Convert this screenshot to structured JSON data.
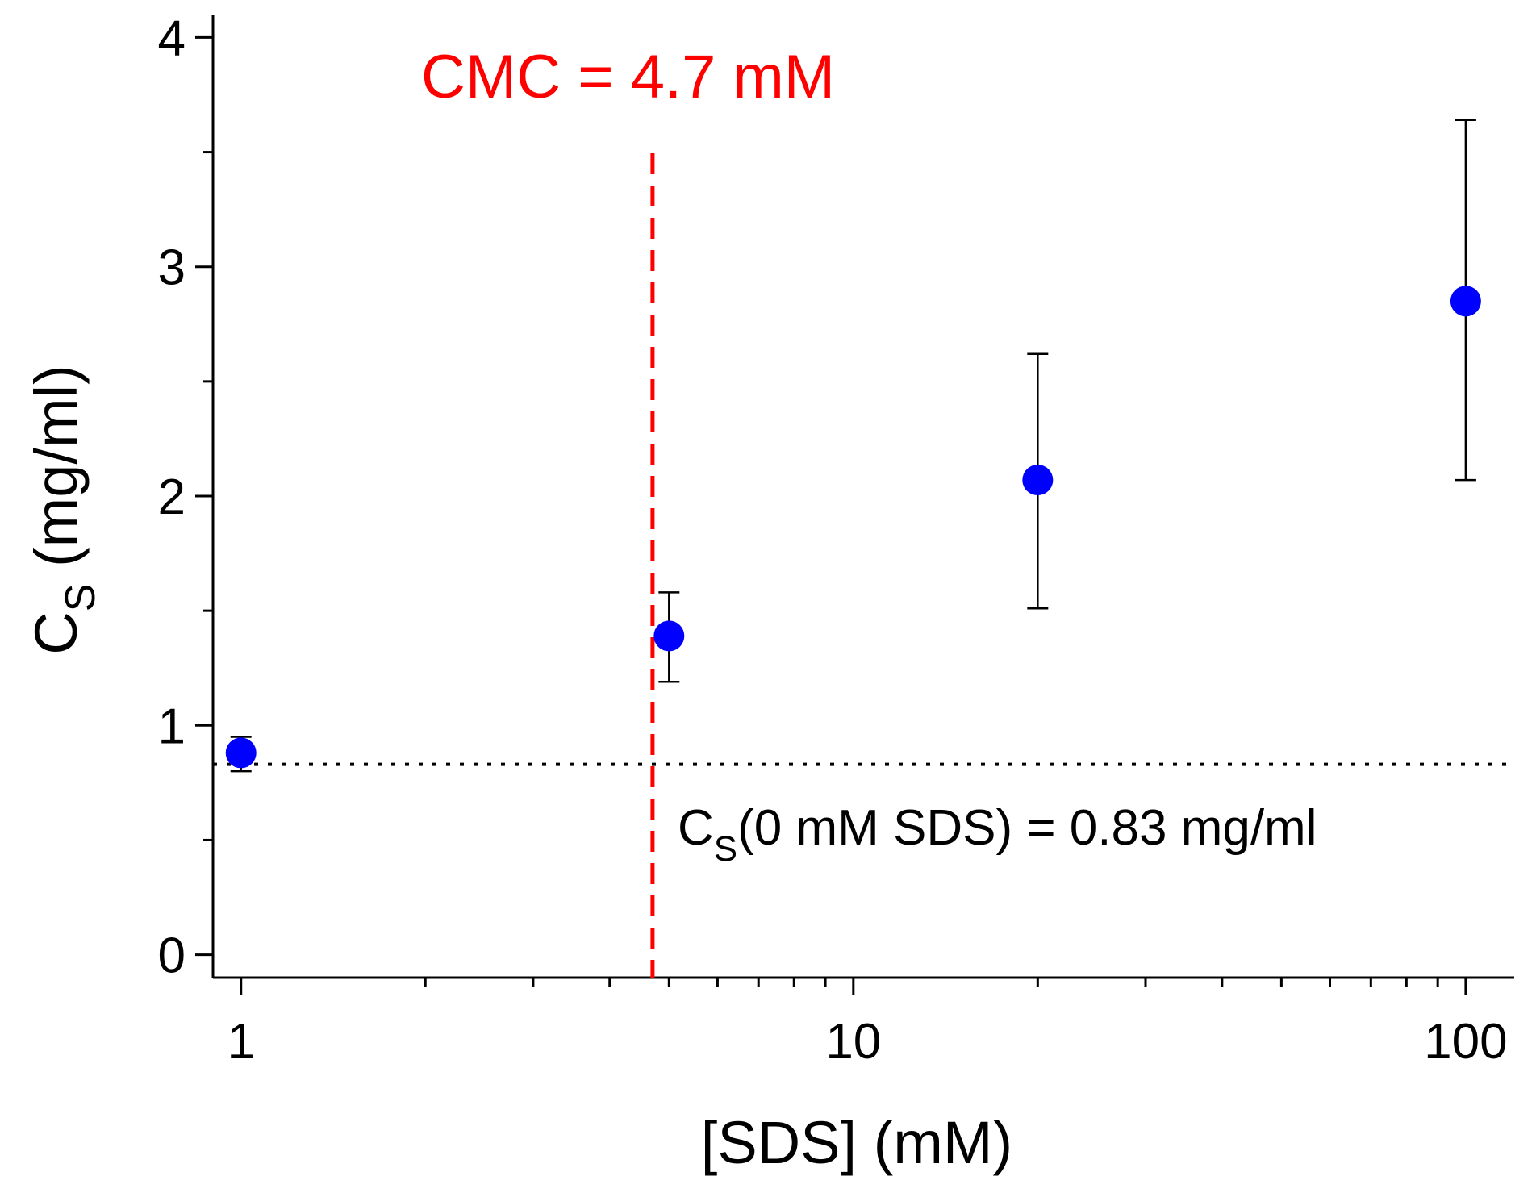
{
  "chart_data": {
    "type": "scatter",
    "xscale": "log",
    "xlim": [
      0.9,
      120
    ],
    "ylim": [
      -0.1,
      4.1
    ],
    "xticks": [
      1,
      10,
      100
    ],
    "xtick_labels": [
      "1",
      "10",
      "100"
    ],
    "yticks": [
      0,
      1,
      2,
      3,
      4
    ],
    "ytick_labels": [
      "0",
      "1",
      "2",
      "3",
      "4"
    ],
    "xlabel": "[SDS] (mM)",
    "ylabel": {
      "main": "C",
      "sub": "S",
      "rest": " (mg/ml)"
    },
    "grid": false,
    "series": [
      {
        "marker_color": "#0000ff",
        "errorbar_color": "#000000",
        "x": [
          1,
          5,
          20,
          100
        ],
        "y": [
          0.88,
          1.39,
          2.07,
          2.85
        ],
        "y_err_low": [
          0.8,
          1.19,
          1.51,
          2.07
        ],
        "y_err_high": [
          0.95,
          1.58,
          2.62,
          3.64
        ]
      }
    ],
    "reference_lines": [
      {
        "orientation": "vertical",
        "x": 4.7,
        "style": "dashed",
        "color": "#ff0000"
      },
      {
        "orientation": "horizontal",
        "y": 0.83,
        "style": "dotted",
        "color": "#000000"
      }
    ],
    "annotations": {
      "cmc": {
        "text": "CMC = 4.7 mM",
        "color": "#ff0000"
      },
      "baseline": {
        "main": "C",
        "sub": "S",
        "rest": "(0 mM SDS) = 0.83 mg/ml",
        "color": "#000000"
      }
    }
  }
}
